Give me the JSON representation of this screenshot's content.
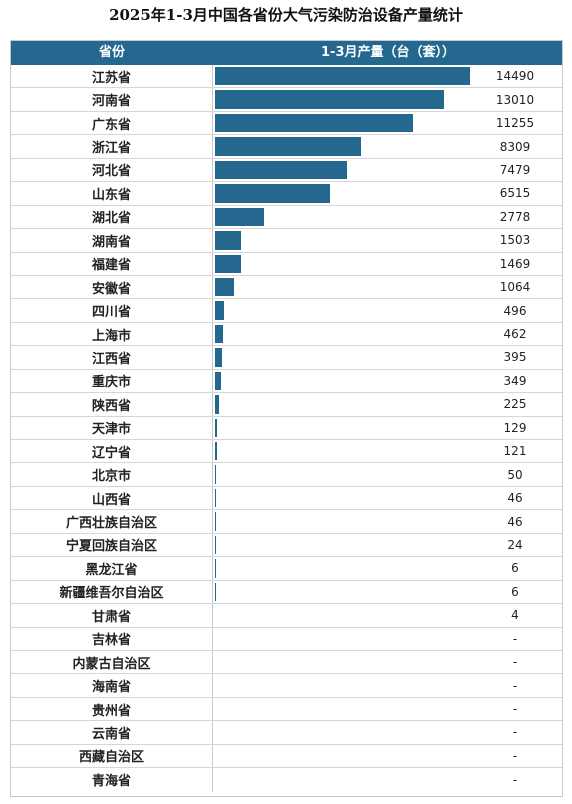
{
  "chart_data": {
    "type": "table",
    "title": "2025年1-3月中国各省份大气污染防治设备产量统计",
    "columns": [
      "省份",
      "1-3月产量（台（套））"
    ],
    "rows": [
      {
        "province": "江苏省",
        "value": 14490,
        "label": "14490"
      },
      {
        "province": "河南省",
        "value": 13010,
        "label": "13010"
      },
      {
        "province": "广东省",
        "value": 11255,
        "label": "11255"
      },
      {
        "province": "浙江省",
        "value": 8309,
        "label": "8309"
      },
      {
        "province": "河北省",
        "value": 7479,
        "label": "7479"
      },
      {
        "province": "山东省",
        "value": 6515,
        "label": "6515"
      },
      {
        "province": "湖北省",
        "value": 2778,
        "label": "2778"
      },
      {
        "province": "湖南省",
        "value": 1503,
        "label": "1503"
      },
      {
        "province": "福建省",
        "value": 1469,
        "label": "1469"
      },
      {
        "province": "安徽省",
        "value": 1064,
        "label": "1064"
      },
      {
        "province": "四川省",
        "value": 496,
        "label": "496"
      },
      {
        "province": "上海市",
        "value": 462,
        "label": "462"
      },
      {
        "province": "江西省",
        "value": 395,
        "label": "395"
      },
      {
        "province": "重庆市",
        "value": 349,
        "label": "349"
      },
      {
        "province": "陕西省",
        "value": 225,
        "label": "225"
      },
      {
        "province": "天津市",
        "value": 129,
        "label": "129"
      },
      {
        "province": "辽宁省",
        "value": 121,
        "label": "121"
      },
      {
        "province": "北京市",
        "value": 50,
        "label": "50"
      },
      {
        "province": "山西省",
        "value": 46,
        "label": "46"
      },
      {
        "province": "广西壮族自治区",
        "value": 46,
        "label": "46"
      },
      {
        "province": "宁夏回族自治区",
        "value": 24,
        "label": "24"
      },
      {
        "province": "黑龙江省",
        "value": 6,
        "label": "6"
      },
      {
        "province": "新疆维吾尔自治区",
        "value": 6,
        "label": "6"
      },
      {
        "province": "甘肃省",
        "value": 4,
        "label": "4"
      },
      {
        "province": "吉林省",
        "value": null,
        "label": "-"
      },
      {
        "province": "内蒙古自治区",
        "value": null,
        "label": "-"
      },
      {
        "province": "海南省",
        "value": null,
        "label": "-"
      },
      {
        "province": "贵州省",
        "value": null,
        "label": "-"
      },
      {
        "province": "云南省",
        "value": null,
        "label": "-"
      },
      {
        "province": "西藏自治区",
        "value": null,
        "label": "-"
      },
      {
        "province": "青海省",
        "value": null,
        "label": "-"
      }
    ],
    "value_max": 14490,
    "bar_color": "#25688f",
    "header_color": "#25688f"
  }
}
